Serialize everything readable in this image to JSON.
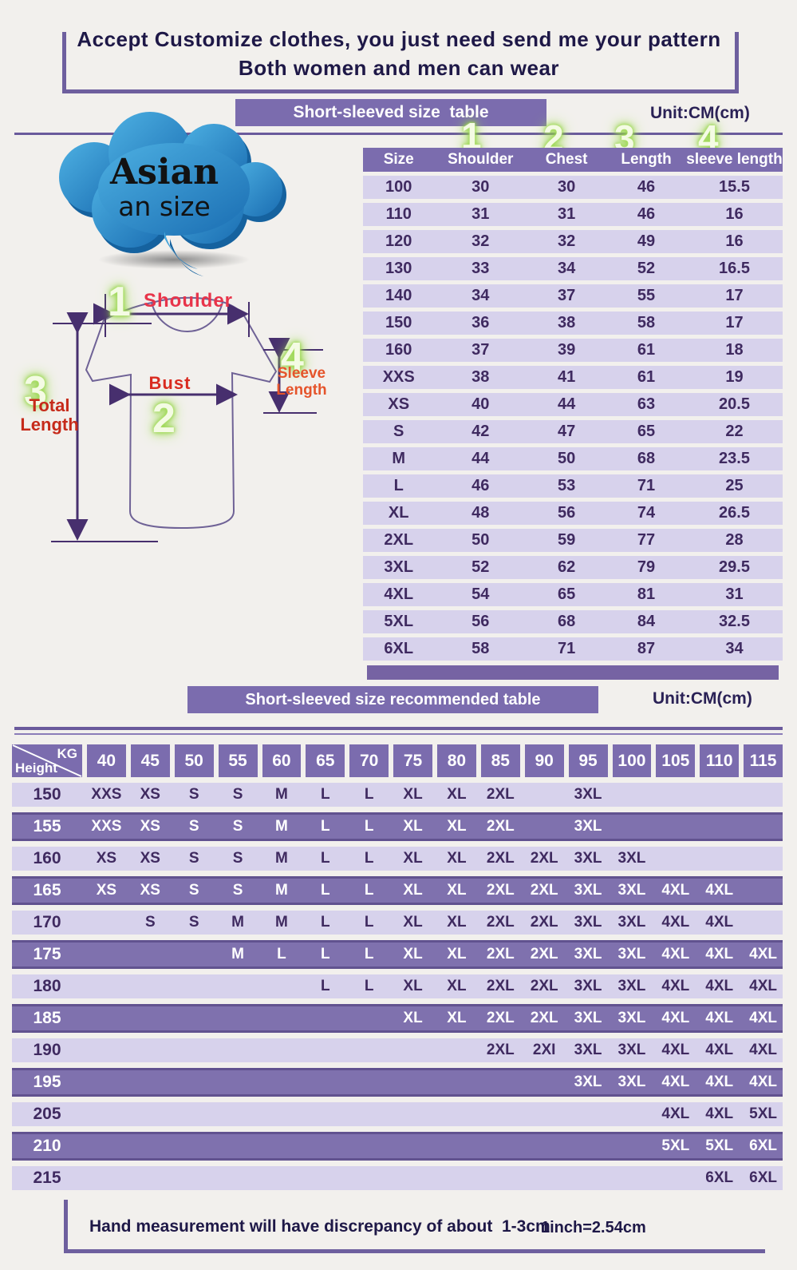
{
  "banner": {
    "line1": "Accept Customize clothes, you just need send me your pattern",
    "line2": "Both women and men can wear"
  },
  "cloud": {
    "line1": "Asian",
    "line2": "an size"
  },
  "section1": {
    "title": "Short-sleeved size  table",
    "unit": "Unit:CM(cm)"
  },
  "diagram": {
    "markers": [
      "1",
      "2",
      "3",
      "4"
    ],
    "shoulder": "Shoulder",
    "bust": "Bust",
    "total": [
      "Total",
      "Length"
    ],
    "sleeve": [
      "Sleeve",
      "Length"
    ]
  },
  "size_table": {
    "markers": [
      "1",
      "2",
      "3",
      "4"
    ],
    "headers": [
      "Size",
      "Shoulder",
      "Chest",
      "Length",
      "sleeve length"
    ],
    "rows": [
      [
        "100",
        "30",
        "30",
        "46",
        "15.5"
      ],
      [
        "110",
        "31",
        "31",
        "46",
        "16"
      ],
      [
        "120",
        "32",
        "32",
        "49",
        "16"
      ],
      [
        "130",
        "33",
        "34",
        "52",
        "16.5"
      ],
      [
        "140",
        "34",
        "37",
        "55",
        "17"
      ],
      [
        "150",
        "36",
        "38",
        "58",
        "17"
      ],
      [
        "160",
        "37",
        "39",
        "61",
        "18"
      ],
      [
        "XXS",
        "38",
        "41",
        "61",
        "19"
      ],
      [
        "XS",
        "40",
        "44",
        "63",
        "20.5"
      ],
      [
        "S",
        "42",
        "47",
        "65",
        "22"
      ],
      [
        "M",
        "44",
        "50",
        "68",
        "23.5"
      ],
      [
        "L",
        "46",
        "53",
        "71",
        "25"
      ],
      [
        "XL",
        "48",
        "56",
        "74",
        "26.5"
      ],
      [
        "2XL",
        "50",
        "59",
        "77",
        "28"
      ],
      [
        "3XL",
        "52",
        "62",
        "79",
        "29.5"
      ],
      [
        "4XL",
        "54",
        "65",
        "81",
        "31"
      ],
      [
        "5XL",
        "56",
        "68",
        "84",
        "32.5"
      ],
      [
        "6XL",
        "58",
        "71",
        "87",
        "34"
      ]
    ]
  },
  "section2": {
    "title": "Short-sleeved size recommended table",
    "unit": "Unit:CM(cm)"
  },
  "recommend_table": {
    "corner": {
      "top": "KG",
      "bottom": "Height"
    },
    "weights": [
      "40",
      "45",
      "50",
      "55",
      "60",
      "65",
      "70",
      "75",
      "80",
      "85",
      "90",
      "95",
      "100",
      "105",
      "110",
      "115"
    ],
    "rows": [
      {
        "height": "150",
        "cells": [
          "XXS",
          "XS",
          "S",
          "S",
          "M",
          "L",
          "L",
          "XL",
          "XL",
          "2XL",
          "",
          "3XL",
          "",
          "",
          "",
          ""
        ]
      },
      {
        "height": "155",
        "cells": [
          "XXS",
          "XS",
          "S",
          "S",
          "M",
          "L",
          "L",
          "XL",
          "XL",
          "2XL",
          "",
          "3XL",
          "",
          "",
          "",
          ""
        ]
      },
      {
        "height": "160",
        "cells": [
          "XS",
          "XS",
          "S",
          "S",
          "M",
          "L",
          "L",
          "XL",
          "XL",
          "2XL",
          "2XL",
          "3XL",
          "3XL",
          "",
          "",
          ""
        ]
      },
      {
        "height": "165",
        "cells": [
          "XS",
          "XS",
          "S",
          "S",
          "M",
          "L",
          "L",
          "XL",
          "XL",
          "2XL",
          "2XL",
          "3XL",
          "3XL",
          "4XL",
          "4XL",
          ""
        ]
      },
      {
        "height": "170",
        "cells": [
          "",
          "S",
          "S",
          "M",
          "M",
          "L",
          "L",
          "XL",
          "XL",
          "2XL",
          "2XL",
          "3XL",
          "3XL",
          "4XL",
          "4XL",
          ""
        ]
      },
      {
        "height": "175",
        "cells": [
          "",
          "",
          "",
          "M",
          "L",
          "L",
          "L",
          "XL",
          "XL",
          "2XL",
          "2XL",
          "3XL",
          "3XL",
          "4XL",
          "4XL",
          "4XL"
        ]
      },
      {
        "height": "180",
        "cells": [
          "",
          "",
          "",
          "",
          "",
          "L",
          "L",
          "XL",
          "XL",
          "2XL",
          "2XL",
          "3XL",
          "3XL",
          "4XL",
          "4XL",
          "4XL"
        ]
      },
      {
        "height": "185",
        "cells": [
          "",
          "",
          "",
          "",
          "",
          "",
          "",
          "XL",
          "XL",
          "2XL",
          "2XL",
          "3XL",
          "3XL",
          "4XL",
          "4XL",
          "4XL"
        ]
      },
      {
        "height": "190",
        "cells": [
          "",
          "",
          "",
          "",
          "",
          "",
          "",
          "",
          "",
          "2XL",
          "2XI",
          "3XL",
          "3XL",
          "4XL",
          "4XL",
          "4XL"
        ]
      },
      {
        "height": "195",
        "cells": [
          "",
          "",
          "",
          "",
          "",
          "",
          "",
          "",
          "",
          "",
          "",
          "3XL",
          "3XL",
          "4XL",
          "4XL",
          "4XL"
        ]
      },
      {
        "height": "205",
        "cells": [
          "",
          "",
          "",
          "",
          "",
          "",
          "",
          "",
          "",
          "",
          "",
          "",
          "",
          "4XL",
          "4XL",
          "5XL"
        ]
      },
      {
        "height": "210",
        "cells": [
          "",
          "",
          "",
          "",
          "",
          "",
          "",
          "",
          "",
          "",
          "",
          "",
          "",
          "5XL",
          "5XL",
          "6XL"
        ]
      },
      {
        "height": "215",
        "cells": [
          "",
          "",
          "",
          "",
          "",
          "",
          "",
          "",
          "",
          "",
          "",
          "",
          "",
          "",
          "6XL",
          "6XL"
        ]
      }
    ]
  },
  "footer": {
    "note": "Hand measurement will have discrepancy of about  1-3cm",
    "conversion": "1inch=2.54cm"
  },
  "colors": {
    "accent_purple": "#7b6cae",
    "row_light": "#d7d2ec",
    "row_purple": "#7f71ae",
    "cell_text": "#3f2a60",
    "banner_text": "#1e1847",
    "marker_green": "#8fd23f",
    "label_red": "#d92b20",
    "cloud_blue": "#2f93cc"
  }
}
